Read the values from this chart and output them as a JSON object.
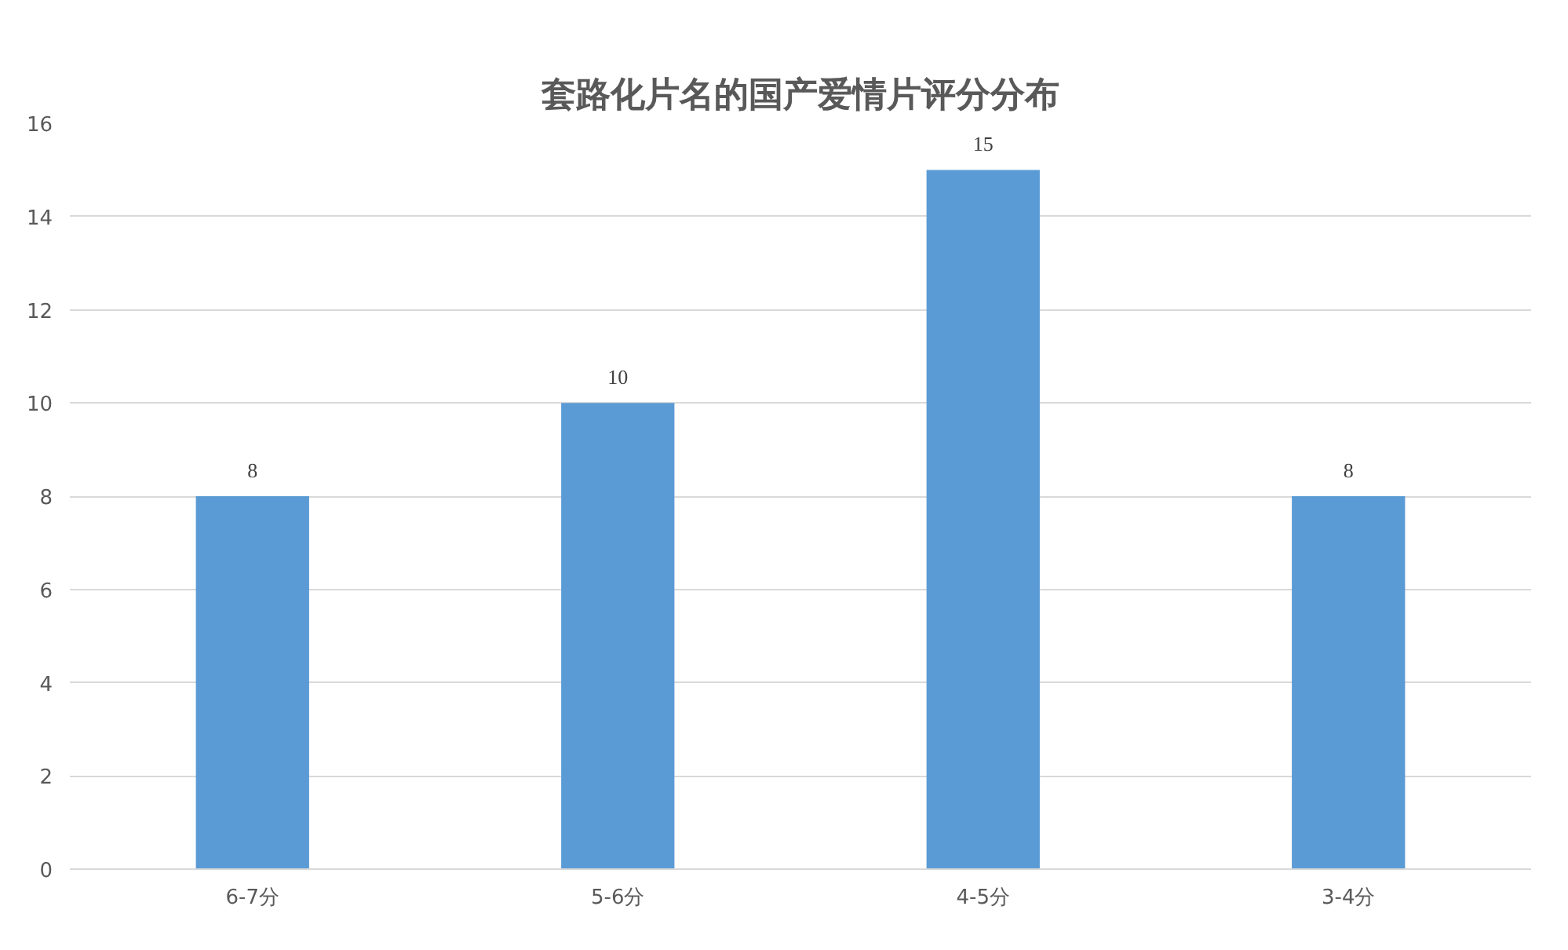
{
  "chart_data": {
    "type": "bar",
    "title": "套路化片名的国产爱情片评分分布",
    "categories": [
      "6-7分",
      "5-6分",
      "4-5分",
      "3-4分"
    ],
    "values": [
      8,
      10,
      15,
      8
    ],
    "color": "#5b9bd5",
    "ylim": [
      0,
      16
    ],
    "yticks": [
      0,
      2,
      4,
      6,
      8,
      10,
      12,
      14,
      16
    ],
    "grid": "y",
    "data_labels": true
  }
}
